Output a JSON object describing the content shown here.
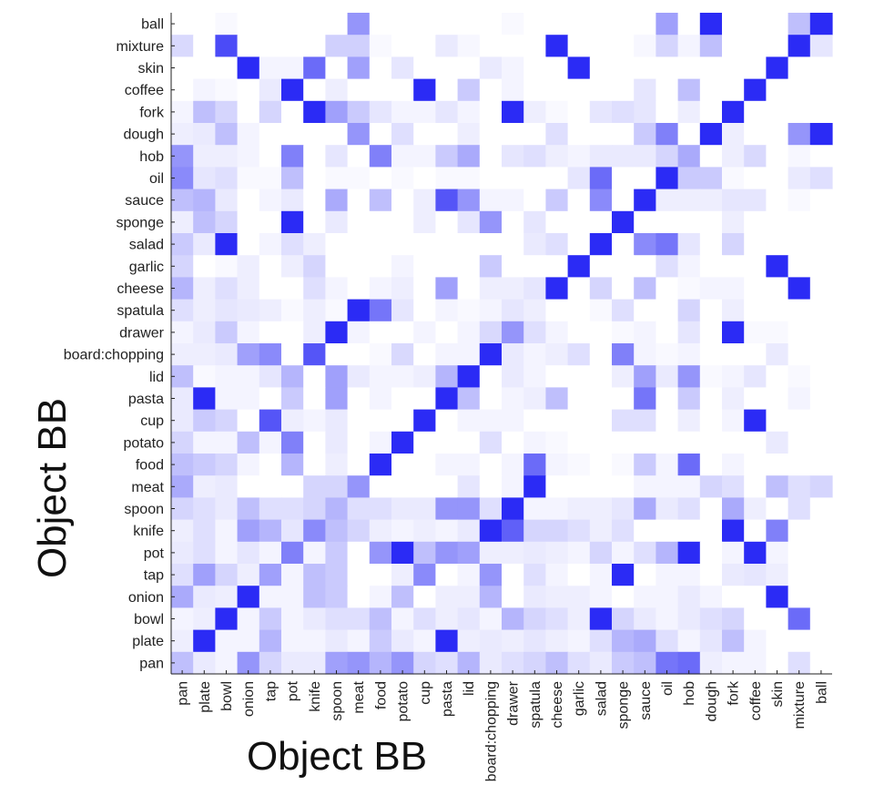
{
  "chart_data": {
    "type": "heatmap",
    "xlabel": "Object BB",
    "ylabel": "Object BB",
    "x_categories": [
      "pan",
      "plate",
      "bowl",
      "onion",
      "tap",
      "pot",
      "knife",
      "spoon",
      "meat",
      "food",
      "potato",
      "cup",
      "pasta",
      "lid",
      "board:chopping",
      "drawer",
      "spatula",
      "cheese",
      "garlic",
      "salad",
      "sponge",
      "sauce",
      "oil",
      "hob",
      "dough",
      "fork",
      "coffee",
      "skin",
      "mixture",
      "ball"
    ],
    "y_categories": [
      "ball",
      "mixture",
      "skin",
      "coffee",
      "fork",
      "dough",
      "hob",
      "oil",
      "sauce",
      "sponge",
      "salad",
      "garlic",
      "cheese",
      "spatula",
      "drawer",
      "board:chopping",
      "lid",
      "pasta",
      "cup",
      "potato",
      "food",
      "meat",
      "spoon",
      "knife",
      "pot",
      "tap",
      "onion",
      "bowl",
      "plate",
      "pan"
    ],
    "color_low": "#ffffff",
    "color_high": "#2b2bf5",
    "value_range": [
      0,
      1
    ],
    "matrix": [
      [
        0,
        0,
        0.03,
        0,
        0,
        0,
        0,
        0,
        0.5,
        0,
        0,
        0,
        0,
        0,
        0,
        0.03,
        0,
        0,
        0,
        0,
        0,
        0,
        0.45,
        0,
        1,
        0,
        0,
        0,
        0.3,
        1
      ],
      [
        0.18,
        0,
        0.85,
        0,
        0,
        0,
        0,
        0.22,
        0.22,
        0.03,
        0,
        0,
        0.1,
        0.04,
        0,
        0,
        0,
        1,
        0,
        0,
        0,
        0.04,
        0.2,
        0.05,
        0.3,
        0,
        0,
        0,
        1,
        0.12
      ],
      [
        0,
        0,
        0,
        1,
        0.05,
        0.05,
        0.7,
        0,
        0.45,
        0,
        0.12,
        0,
        0,
        0,
        0.1,
        0.05,
        0,
        0,
        1,
        0,
        0,
        0,
        0,
        0,
        0,
        0,
        0,
        1,
        0,
        0
      ],
      [
        0,
        0.05,
        0.03,
        0,
        0.1,
        1,
        0,
        0.08,
        0,
        0,
        0,
        1,
        0,
        0.25,
        0,
        0.05,
        0,
        0,
        0,
        0,
        0,
        0.12,
        0,
        0.3,
        0,
        0,
        1,
        0,
        0,
        0
      ],
      [
        0.05,
        0.3,
        0.2,
        0,
        0.2,
        0,
        1,
        0.45,
        0.25,
        0.12,
        0.05,
        0.05,
        0.12,
        0.05,
        0,
        1,
        0.08,
        0.03,
        0,
        0.12,
        0.15,
        0.12,
        0,
        0.08,
        0,
        1,
        0,
        0,
        0,
        0
      ],
      [
        0.08,
        0.1,
        0.3,
        0.05,
        0,
        0,
        0,
        0,
        0.5,
        0,
        0.15,
        0,
        0,
        0.08,
        0,
        0,
        0,
        0.15,
        0,
        0,
        0,
        0.25,
        0.6,
        0,
        1,
        0.08,
        0,
        0,
        0.5,
        1
      ],
      [
        0.5,
        0.08,
        0.08,
        0.05,
        0,
        0.6,
        0,
        0.12,
        0,
        0.6,
        0.05,
        0.05,
        0.25,
        0.4,
        0,
        0.12,
        0.15,
        0.08,
        0.05,
        0.1,
        0.1,
        0.1,
        0.2,
        0.4,
        0,
        0.08,
        0.18,
        0,
        0.04,
        0
      ],
      [
        0.55,
        0.12,
        0.15,
        0.03,
        0.03,
        0.3,
        0,
        0.03,
        0.03,
        0,
        0.03,
        0,
        0.03,
        0.03,
        0,
        0,
        0,
        0,
        0.12,
        0.7,
        0,
        0,
        1,
        0.25,
        0.25,
        0.03,
        0,
        0,
        0.1,
        0.15
      ],
      [
        0.3,
        0.35,
        0.1,
        0,
        0.05,
        0.1,
        0,
        0.4,
        0,
        0.3,
        0,
        0.08,
        0.8,
        0.5,
        0.05,
        0.05,
        0,
        0.25,
        0,
        0.55,
        0,
        1,
        0.08,
        0.08,
        0.08,
        0.12,
        0.12,
        0,
        0.03,
        0
      ],
      [
        0.08,
        0.3,
        0.2,
        0,
        0,
        1,
        0,
        0.1,
        0,
        0,
        0,
        0.08,
        0,
        0.12,
        0.5,
        0,
        0.12,
        0,
        0,
        0,
        1,
        0,
        0,
        0,
        0,
        0.08,
        0,
        0,
        0,
        0
      ],
      [
        0.25,
        0.1,
        1,
        0,
        0.05,
        0.15,
        0.08,
        0,
        0,
        0,
        0,
        0,
        0,
        0,
        0,
        0,
        0.1,
        0.15,
        0,
        1,
        0,
        0.55,
        0.65,
        0.12,
        0,
        0.2,
        0,
        0,
        0,
        0
      ],
      [
        0.2,
        0,
        0.03,
        0.08,
        0,
        0.08,
        0.2,
        0,
        0,
        0,
        0.05,
        0,
        0,
        0,
        0.25,
        0,
        0,
        0,
        1,
        0,
        0,
        0,
        0.15,
        0.05,
        0,
        0,
        0,
        1,
        0,
        0
      ],
      [
        0.35,
        0.08,
        0.15,
        0.08,
        0,
        0,
        0.15,
        0.05,
        0,
        0.05,
        0.08,
        0,
        0.45,
        0,
        0.08,
        0.08,
        0.12,
        1,
        0,
        0.2,
        0,
        0.3,
        0,
        0.03,
        0.05,
        0.05,
        0,
        0,
        1,
        0
      ],
      [
        0.15,
        0.08,
        0.12,
        0.1,
        0.08,
        0.03,
        0.08,
        0.03,
        1,
        0.65,
        0.12,
        0,
        0.05,
        0.03,
        0.05,
        0.12,
        0.08,
        0,
        0,
        0.03,
        0.15,
        0,
        0,
        0.2,
        0,
        0.08,
        0,
        0,
        0,
        0
      ],
      [
        0.05,
        0.1,
        0.25,
        0.05,
        0,
        0,
        0.08,
        1,
        0.05,
        0,
        0,
        0.05,
        0,
        0.05,
        0.18,
        0.5,
        0.15,
        0.05,
        0,
        0,
        0.03,
        0.05,
        0,
        0.12,
        0,
        1,
        0.03,
        0.03,
        0,
        0
      ],
      [
        0.08,
        0.08,
        0.1,
        0.45,
        0.55,
        0,
        0.8,
        0,
        0,
        0.03,
        0.18,
        0,
        0.05,
        0.05,
        1,
        0.1,
        0.05,
        0.08,
        0.15,
        0,
        0.6,
        0.05,
        0.03,
        0.05,
        0,
        0,
        0,
        0.1,
        0,
        0
      ],
      [
        0.3,
        0.03,
        0.05,
        0.05,
        0.12,
        0.35,
        0,
        0.45,
        0.1,
        0.05,
        0.05,
        0.08,
        0.35,
        1,
        0,
        0.1,
        0.05,
        0,
        0,
        0,
        0.08,
        0.45,
        0.1,
        0.5,
        0.03,
        0.05,
        0.12,
        0,
        0.03,
        0
      ],
      [
        0.1,
        1,
        0.05,
        0.05,
        0,
        0.25,
        0,
        0.45,
        0,
        0.05,
        0,
        0,
        1,
        0.3,
        0,
        0.05,
        0.08,
        0.3,
        0,
        0,
        0,
        0.65,
        0,
        0.25,
        0,
        0.08,
        0,
        0,
        0.05,
        0
      ],
      [
        0.1,
        0.25,
        0.2,
        0,
        0.8,
        0.08,
        0.05,
        0.1,
        0,
        0,
        0,
        1,
        0,
        0.05,
        0.05,
        0.05,
        0,
        0,
        0,
        0,
        0.15,
        0.15,
        0,
        0.08,
        0,
        0.05,
        1,
        0,
        0,
        0
      ],
      [
        0.2,
        0.05,
        0.05,
        0.3,
        0.05,
        0.6,
        0,
        0.1,
        0,
        0.05,
        1,
        0,
        0,
        0,
        0.15,
        0,
        0.05,
        0.03,
        0,
        0,
        0,
        0,
        0,
        0,
        0,
        0,
        0,
        0.1,
        0,
        0
      ],
      [
        0.3,
        0.25,
        0.2,
        0.05,
        0,
        0.35,
        0,
        0.08,
        0,
        1,
        0,
        0,
        0.05,
        0.05,
        0,
        0.05,
        0.7,
        0.05,
        0.03,
        0,
        0.03,
        0.25,
        0.05,
        0.7,
        0,
        0.05,
        0,
        0,
        0,
        0
      ],
      [
        0.4,
        0.08,
        0.1,
        0,
        0,
        0,
        0.2,
        0.2,
        0.5,
        0,
        0,
        0,
        0,
        0.12,
        0,
        0.05,
        1,
        0,
        0,
        0,
        0,
        0.05,
        0.05,
        0.05,
        0.2,
        0.15,
        0,
        0.3,
        0.15,
        0.2
      ],
      [
        0.2,
        0.15,
        0.1,
        0.3,
        0.15,
        0.15,
        0.2,
        0.35,
        0.15,
        0.15,
        0.1,
        0.1,
        0.5,
        0.5,
        0.15,
        1,
        0.05,
        0.05,
        0.08,
        0.08,
        0.12,
        0.4,
        0.1,
        0.15,
        0,
        0.4,
        0.08,
        0,
        0.15,
        0
      ],
      [
        0.08,
        0.15,
        0.05,
        0.45,
        0.35,
        0.12,
        0.55,
        0.3,
        0.2,
        0.08,
        0.05,
        0.08,
        0.05,
        0.1,
        1,
        0.75,
        0.2,
        0.2,
        0.15,
        0.08,
        0.15,
        0,
        0,
        0,
        0,
        1,
        0,
        0.6,
        0,
        0
      ],
      [
        0.1,
        0.15,
        0.05,
        0.12,
        0.05,
        0.6,
        0.05,
        0.25,
        0,
        0.5,
        1,
        0.3,
        0.5,
        0.45,
        0.08,
        0.08,
        0.1,
        0.08,
        0.05,
        0.2,
        0.05,
        0.15,
        0.35,
        1,
        0,
        0.05,
        1,
        0.05,
        0,
        0
      ],
      [
        0.15,
        0.45,
        0.2,
        0.08,
        0.45,
        0.05,
        0.3,
        0.25,
        0,
        0,
        0.08,
        0.55,
        0,
        0.05,
        0.5,
        0,
        0.15,
        0.05,
        0,
        0.05,
        1,
        0,
        0.05,
        0.05,
        0,
        0.1,
        0.12,
        0.08,
        0,
        0
      ],
      [
        0.4,
        0.1,
        0.08,
        1,
        0.05,
        0.05,
        0.3,
        0.25,
        0,
        0.05,
        0.3,
        0,
        0.08,
        0.08,
        0.35,
        0,
        0.1,
        0.08,
        0.08,
        0.05,
        0,
        0.05,
        0.05,
        0.1,
        0.05,
        0,
        0,
        1,
        0,
        0
      ],
      [
        0.05,
        0.08,
        1,
        0.05,
        0.25,
        0.05,
        0.1,
        0.15,
        0.15,
        0.3,
        0.05,
        0.15,
        0.08,
        0.12,
        0.05,
        0.35,
        0.2,
        0.15,
        0.08,
        1,
        0.2,
        0.1,
        0.05,
        0.1,
        0.15,
        0.2,
        0,
        0,
        0.7,
        0
      ],
      [
        0.08,
        1,
        0.05,
        0.05,
        0.35,
        0.05,
        0.05,
        0.1,
        0.05,
        0.25,
        0.1,
        0.05,
        1,
        0.08,
        0.1,
        0.08,
        0.12,
        0.08,
        0.05,
        0.15,
        0.35,
        0.4,
        0.15,
        0.05,
        0.12,
        0.3,
        0.05,
        0,
        0,
        0
      ],
      [
        0.3,
        0.1,
        0.05,
        0.5,
        0.2,
        0.1,
        0.1,
        0.45,
        0.5,
        0.35,
        0.5,
        0.2,
        0.15,
        0.35,
        0.1,
        0.15,
        0.2,
        0.3,
        0.15,
        0.1,
        0.25,
        0.3,
        0.65,
        0.7,
        0.08,
        0.05,
        0.05,
        0,
        0.15,
        0
      ]
    ]
  }
}
